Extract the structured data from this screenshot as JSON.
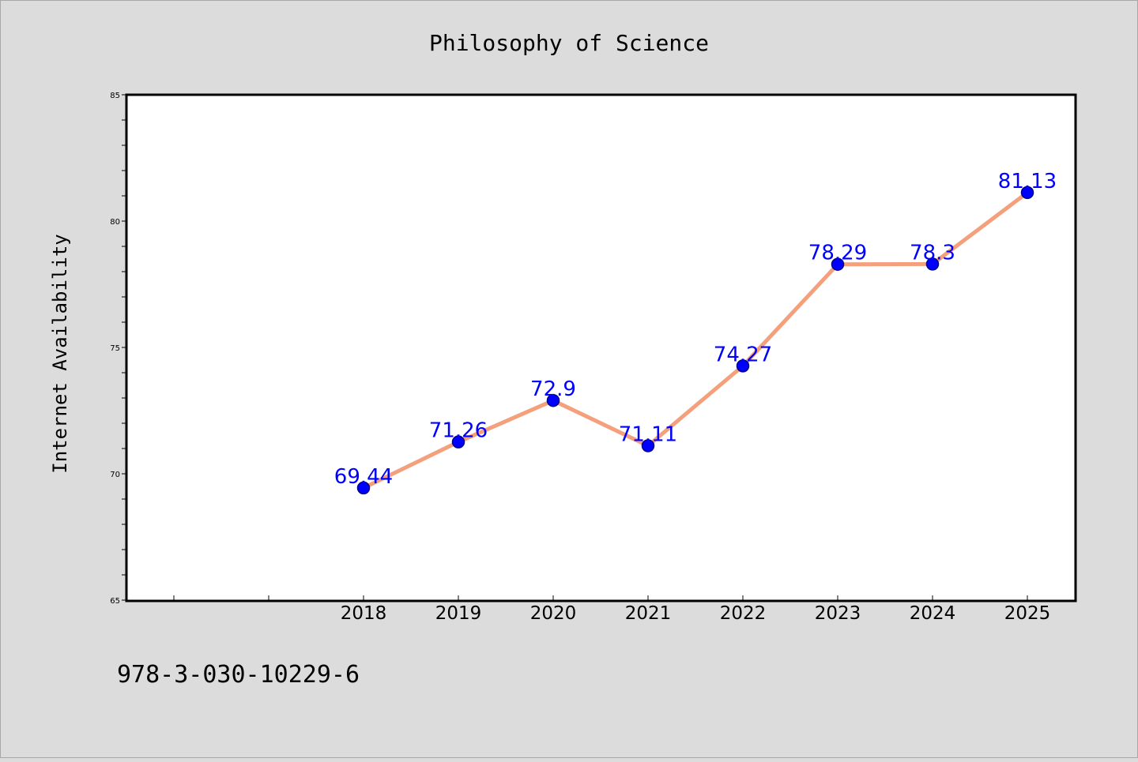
{
  "colors": {
    "line": "#f4a07c",
    "marker": "#0000ff",
    "data_label": "#0000ff"
  },
  "isbn": "978-3-030-10229-6",
  "chart_data": {
    "type": "line",
    "title": "Philosophy of Science",
    "xlabel": "",
    "ylabel": "Internet Availability",
    "categories": [
      "2018",
      "2019",
      "2020",
      "2021",
      "2022",
      "2023",
      "2024",
      "2025"
    ],
    "series": [
      {
        "values": [
          69.44,
          71.26,
          72.9,
          71.11,
          74.27,
          78.29,
          78.3,
          81.13
        ],
        "labels": [
          "69.44",
          "71.26",
          "72.9",
          "71.11",
          "74.27",
          "78.29",
          "78.3",
          "81.13"
        ]
      }
    ],
    "ylim": [
      65,
      85
    ],
    "yticks": [
      "65",
      "70",
      "75",
      "80",
      "85"
    ],
    "grid": false,
    "legend": "none"
  }
}
